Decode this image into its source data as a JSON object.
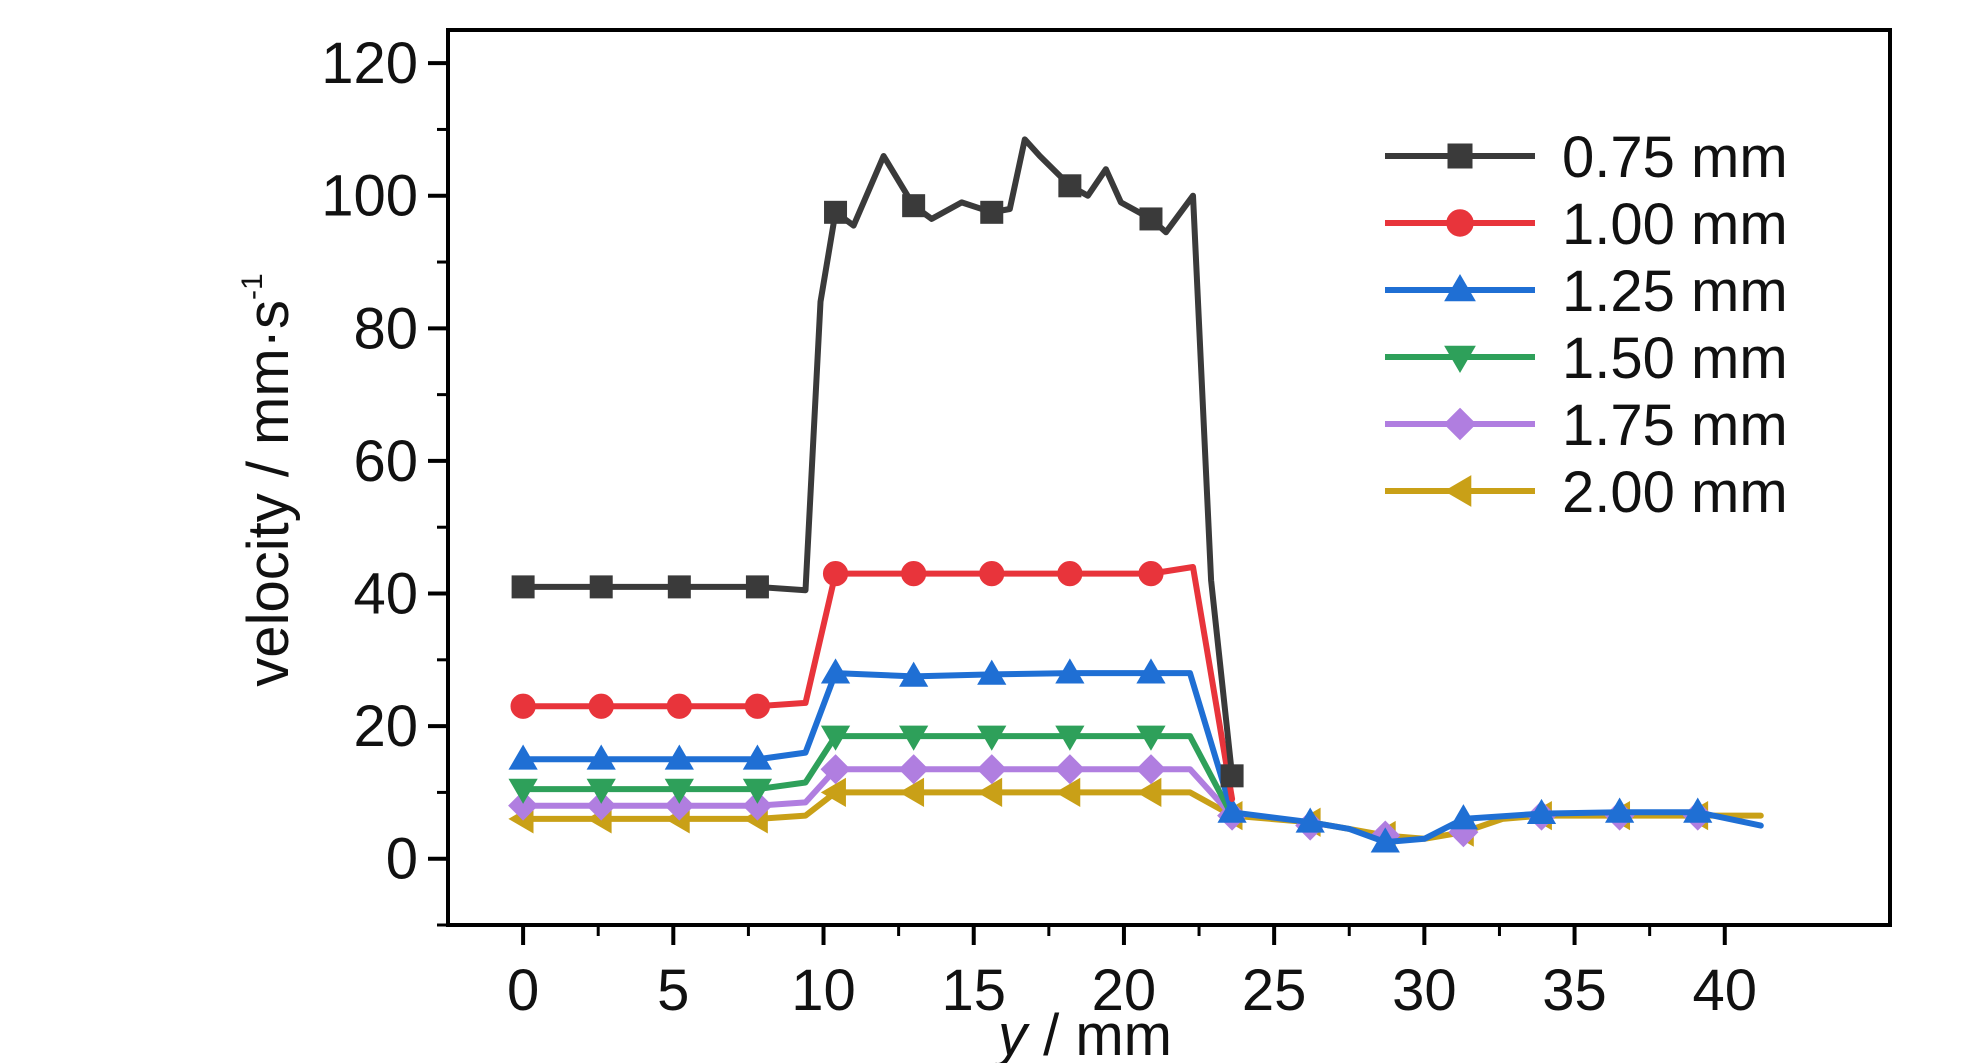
{
  "chart_data": {
    "type": "line",
    "xlabel_var": "y",
    "xlabel_unit": " / mm",
    "ylabel_main": "velocity / mm·s",
    "ylabel_sup": "-1",
    "xlim": [
      -2.5,
      45.5
    ],
    "ylim": [
      -10,
      125
    ],
    "xticks": [
      0,
      5,
      10,
      15,
      20,
      25,
      30,
      35,
      40
    ],
    "yticks": [
      0,
      20,
      40,
      60,
      80,
      100,
      120
    ],
    "legend_position": "top-right",
    "series": [
      {
        "name": "0.75 mm",
        "color": "#3a3a3a",
        "marker": "square",
        "x": [
          0,
          2.6,
          5.2,
          7.8,
          9.4,
          9.9,
          10.4,
          11,
          12,
          13,
          13.6,
          14.6,
          15.6,
          16.2,
          16.7,
          17.2,
          18.2,
          18.8,
          19.4,
          19.9,
          20.9,
          21.4,
          22.3,
          22.9,
          23.6
        ],
        "y": [
          41,
          41,
          41,
          41,
          40.5,
          84,
          97.5,
          95.5,
          106,
          98.5,
          96.5,
          99,
          97.5,
          98,
          108.5,
          106,
          101.5,
          100,
          104,
          99,
          96.5,
          94.5,
          100,
          42,
          12.5
        ],
        "marker_x": [
          0,
          2.6,
          5.2,
          7.8,
          10.4,
          13,
          15.6,
          18.2,
          20.9,
          23.6
        ],
        "marker_y": [
          41,
          41,
          41,
          41,
          97.5,
          98.5,
          97.5,
          101.5,
          96.5,
          12.5
        ]
      },
      {
        "name": "1.00 mm",
        "color": "#e8343b",
        "marker": "circle",
        "x": [
          0,
          2.6,
          5.2,
          7.8,
          9.4,
          10.4,
          13,
          15.6,
          18.2,
          20.9,
          22.3,
          23.6
        ],
        "y": [
          23,
          23,
          23,
          23,
          23.5,
          43,
          43,
          43,
          43,
          43,
          44,
          9
        ],
        "marker_x": [
          0,
          2.6,
          5.2,
          7.8,
          10.4,
          13,
          15.6,
          18.2,
          20.9
        ],
        "marker_y": [
          23,
          23,
          23,
          23,
          43,
          43,
          43,
          43,
          43
        ]
      },
      {
        "name": "1.25 mm",
        "color": "#1f6fd4",
        "marker": "triangle-up",
        "x": [
          0,
          2.6,
          5.2,
          7.8,
          9.4,
          10.4,
          13,
          15.6,
          18.2,
          20.9,
          22.2,
          23.6,
          26.2,
          27.5,
          28.7,
          30,
          31.3,
          33.9,
          36.5,
          39.1,
          41.2
        ],
        "y": [
          15,
          15,
          15,
          15,
          16,
          28,
          27.5,
          27.8,
          28,
          28,
          28,
          7,
          5.5,
          4.5,
          2.5,
          3,
          6,
          6.8,
          7,
          7,
          5
        ],
        "marker_x": [
          0,
          2.6,
          5.2,
          7.8,
          10.4,
          13,
          15.6,
          18.2,
          20.9,
          23.6,
          26.2,
          28.7,
          31.3,
          33.9,
          36.5,
          39.1
        ],
        "marker_y": [
          15,
          15,
          15,
          15,
          28,
          27.5,
          27.8,
          28,
          28,
          7,
          5.5,
          2.5,
          6,
          6.8,
          7,
          7
        ]
      },
      {
        "name": "1.50 mm",
        "color": "#2ea05a",
        "marker": "triangle-down",
        "x": [
          0,
          2.6,
          5.2,
          7.8,
          9.4,
          10.4,
          13,
          15.6,
          18.2,
          20.9,
          22.2,
          23.6
        ],
        "y": [
          10.5,
          10.5,
          10.5,
          10.5,
          11.5,
          18.5,
          18.5,
          18.5,
          18.5,
          18.5,
          18.5,
          6.5
        ],
        "marker_x": [
          0,
          2.6,
          5.2,
          7.8,
          10.4,
          13,
          15.6,
          18.2,
          20.9
        ],
        "marker_y": [
          10.5,
          10.5,
          10.5,
          10.5,
          18.5,
          18.5,
          18.5,
          18.5,
          18.5
        ]
      },
      {
        "name": "1.75 mm",
        "color": "#b07ee0",
        "marker": "diamond",
        "x": [
          0,
          2.6,
          5.2,
          7.8,
          9.4,
          10.4,
          13,
          15.6,
          18.2,
          20.9,
          22.2,
          23.6
        ],
        "y": [
          8,
          8,
          8,
          8,
          8.5,
          13.5,
          13.5,
          13.5,
          13.5,
          13.5,
          13.5,
          6.5
        ],
        "marker_x": [
          0,
          2.6,
          5.2,
          7.8,
          10.4,
          13,
          15.6,
          18.2,
          20.9,
          23.6,
          26.2,
          28.7,
          31.3,
          33.9,
          36.5,
          39.1
        ],
        "marker_y": [
          8,
          8,
          8,
          8,
          13.5,
          13.5,
          13.5,
          13.5,
          13.5,
          6.5,
          5,
          3.5,
          4,
          6.5,
          6.5,
          6.5
        ]
      },
      {
        "name": "2.00 mm",
        "color": "#c9a017",
        "marker": "triangle-left",
        "x": [
          0,
          2.6,
          5.2,
          7.8,
          9.4,
          10.4,
          13,
          15.6,
          18.2,
          20.9,
          22.2,
          23.6,
          26.2,
          27.5,
          28.7,
          30,
          31.3,
          32.6,
          33.9,
          36.5,
          39.1,
          41.2
        ],
        "y": [
          6,
          6,
          6,
          6,
          6.5,
          10,
          10,
          10,
          10,
          10,
          10,
          6.5,
          5.5,
          4.5,
          3.5,
          3,
          4,
          6,
          6.5,
          6.5,
          6.5,
          6.5
        ],
        "marker_x": [
          0,
          2.6,
          5.2,
          7.8,
          10.4,
          13,
          15.6,
          18.2,
          20.9,
          23.6,
          26.2,
          28.7,
          31.3,
          33.9,
          36.5,
          39.1
        ],
        "marker_y": [
          6,
          6,
          6,
          6,
          10,
          10,
          10,
          10,
          10,
          6.5,
          5.5,
          3.5,
          4,
          6.5,
          6.5,
          6.5
        ]
      }
    ]
  }
}
